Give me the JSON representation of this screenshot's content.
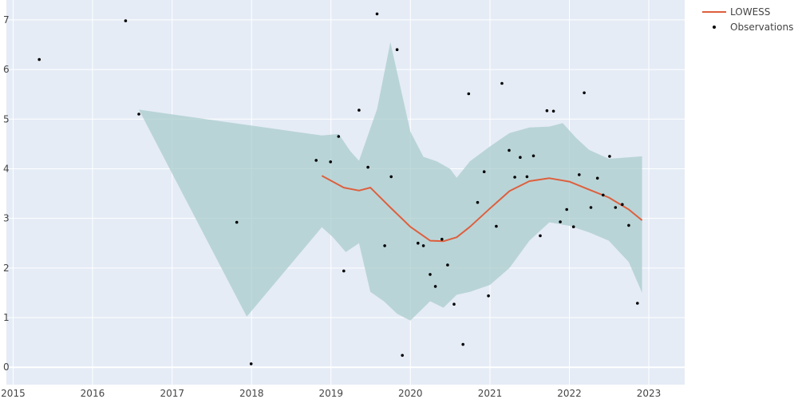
{
  "chart_data": {
    "type": "scatter",
    "title": "",
    "xlabel": "",
    "ylabel": "",
    "x_ticks": [
      "2015",
      "2016",
      "2017",
      "2018",
      "2019",
      "2020",
      "2021",
      "2022",
      "2023"
    ],
    "y_ticks": [
      "0",
      "1",
      "2",
      "3",
      "4",
      "5",
      "6",
      "7"
    ],
    "xlim": [
      "2014-12-01",
      "2023-06-15"
    ],
    "ylim": [
      -0.35,
      7.4
    ],
    "grid": true,
    "legend_position": "top-right",
    "legend": [
      {
        "name": "LOWESS",
        "color": "#de5f3d",
        "symbol": "line"
      },
      {
        "name": "Observations",
        "color": "#000000",
        "symbol": "dot"
      }
    ],
    "series": [
      {
        "name": "Observations",
        "color": "#000000",
        "points": [
          [
            "2015-05-01",
            6.2
          ],
          [
            "2016-06-01",
            6.98
          ],
          [
            "2016-08-01",
            5.1
          ],
          [
            "2017-10-25",
            2.92
          ],
          [
            "2017-12-30",
            0.07
          ],
          [
            "2018-10-25",
            4.17
          ],
          [
            "2018-12-30",
            4.14
          ],
          [
            "2019-02-05",
            4.65
          ],
          [
            "2019-03-01",
            1.94
          ],
          [
            "2019-05-10",
            5.18
          ],
          [
            "2019-06-20",
            4.03
          ],
          [
            "2019-08-01",
            7.12
          ],
          [
            "2019-09-05",
            2.45
          ],
          [
            "2019-10-05",
            3.84
          ],
          [
            "2019-11-01",
            6.4
          ],
          [
            "2019-11-25",
            0.24
          ],
          [
            "2020-02-05",
            2.5
          ],
          [
            "2020-03-01",
            2.45
          ],
          [
            "2020-04-01",
            1.87
          ],
          [
            "2020-04-25",
            1.63
          ],
          [
            "2020-05-25",
            2.58
          ],
          [
            "2020-06-20",
            2.06
          ],
          [
            "2020-07-20",
            1.27
          ],
          [
            "2020-08-30",
            0.46
          ],
          [
            "2020-09-25",
            5.51
          ],
          [
            "2020-11-05",
            3.32
          ],
          [
            "2020-12-05",
            3.94
          ],
          [
            "2020-12-25",
            1.44
          ],
          [
            "2021-01-30",
            2.84
          ],
          [
            "2021-02-25",
            5.72
          ],
          [
            "2021-03-30",
            4.37
          ],
          [
            "2021-04-25",
            3.83
          ],
          [
            "2021-05-20",
            4.23
          ],
          [
            "2021-06-20",
            3.84
          ],
          [
            "2021-07-20",
            4.26
          ],
          [
            "2021-08-20",
            2.65
          ],
          [
            "2021-09-20",
            5.17
          ],
          [
            "2021-10-20",
            5.16
          ],
          [
            "2021-11-20",
            2.93
          ],
          [
            "2021-12-20",
            3.18
          ],
          [
            "2022-01-20",
            2.83
          ],
          [
            "2022-02-15",
            3.88
          ],
          [
            "2022-03-10",
            5.53
          ],
          [
            "2022-04-10",
            3.22
          ],
          [
            "2022-05-10",
            3.81
          ],
          [
            "2022-06-05",
            3.47
          ],
          [
            "2022-07-05",
            4.25
          ],
          [
            "2022-08-01",
            3.22
          ],
          [
            "2022-09-01",
            3.28
          ],
          [
            "2022-10-01",
            2.86
          ],
          [
            "2022-11-10",
            1.29
          ]
        ]
      },
      {
        "name": "LOWESS",
        "color": "#de5f3d",
        "points": [
          [
            "2018-11-20",
            3.86
          ],
          [
            "2019-01-01",
            3.76
          ],
          [
            "2019-03-01",
            3.62
          ],
          [
            "2019-05-10",
            3.56
          ],
          [
            "2019-07-01",
            3.62
          ],
          [
            "2019-10-01",
            3.22
          ],
          [
            "2020-01-01",
            2.83
          ],
          [
            "2020-04-01",
            2.55
          ],
          [
            "2020-06-01",
            2.54
          ],
          [
            "2020-08-01",
            2.62
          ],
          [
            "2020-10-01",
            2.83
          ],
          [
            "2021-01-01",
            3.2
          ],
          [
            "2021-04-01",
            3.55
          ],
          [
            "2021-07-01",
            3.75
          ],
          [
            "2021-10-01",
            3.81
          ],
          [
            "2022-01-01",
            3.74
          ],
          [
            "2022-04-01",
            3.58
          ],
          [
            "2022-07-01",
            3.42
          ],
          [
            "2022-10-01",
            3.18
          ],
          [
            "2022-12-01",
            2.96
          ]
        ]
      }
    ],
    "band": {
      "color": "#a7cacb",
      "upper": [
        [
          "2016-08-01",
          5.19
        ],
        [
          "2018-11-20",
          4.67
        ],
        [
          "2019-02-05",
          4.7
        ],
        [
          "2019-04-01",
          4.35
        ],
        [
          "2019-05-10",
          4.16
        ],
        [
          "2019-08-01",
          5.2
        ],
        [
          "2019-10-01",
          6.55
        ],
        [
          "2020-01-01",
          4.75
        ],
        [
          "2020-03-01",
          4.24
        ],
        [
          "2020-05-01",
          4.15
        ],
        [
          "2020-07-01",
          4.0
        ],
        [
          "2020-08-01",
          3.82
        ],
        [
          "2020-10-01",
          4.15
        ],
        [
          "2021-01-01",
          4.45
        ],
        [
          "2021-04-01",
          4.72
        ],
        [
          "2021-07-01",
          4.83
        ],
        [
          "2021-10-01",
          4.85
        ],
        [
          "2021-12-01",
          4.92
        ],
        [
          "2022-02-01",
          4.62
        ],
        [
          "2022-04-01",
          4.38
        ],
        [
          "2022-07-01",
          4.2
        ],
        [
          "2022-12-01",
          4.25
        ]
      ],
      "lower": [
        [
          "2016-08-01",
          5.19
        ],
        [
          "2017-12-10",
          1.02
        ],
        [
          "2018-11-20",
          2.82
        ],
        [
          "2019-01-10",
          2.62
        ],
        [
          "2019-03-10",
          2.32
        ],
        [
          "2019-05-10",
          2.5
        ],
        [
          "2019-07-01",
          1.52
        ],
        [
          "2019-09-01",
          1.33
        ],
        [
          "2019-11-01",
          1.08
        ],
        [
          "2020-01-01",
          0.94
        ],
        [
          "2020-04-01",
          1.33
        ],
        [
          "2020-06-01",
          1.2
        ],
        [
          "2020-08-01",
          1.46
        ],
        [
          "2020-10-01",
          1.52
        ],
        [
          "2021-01-01",
          1.66
        ],
        [
          "2021-04-01",
          2.0
        ],
        [
          "2021-07-01",
          2.55
        ],
        [
          "2021-10-01",
          2.92
        ],
        [
          "2022-01-01",
          2.85
        ],
        [
          "2022-04-01",
          2.72
        ],
        [
          "2022-07-01",
          2.55
        ],
        [
          "2022-10-01",
          2.12
        ],
        [
          "2022-12-01",
          1.5
        ]
      ]
    }
  }
}
